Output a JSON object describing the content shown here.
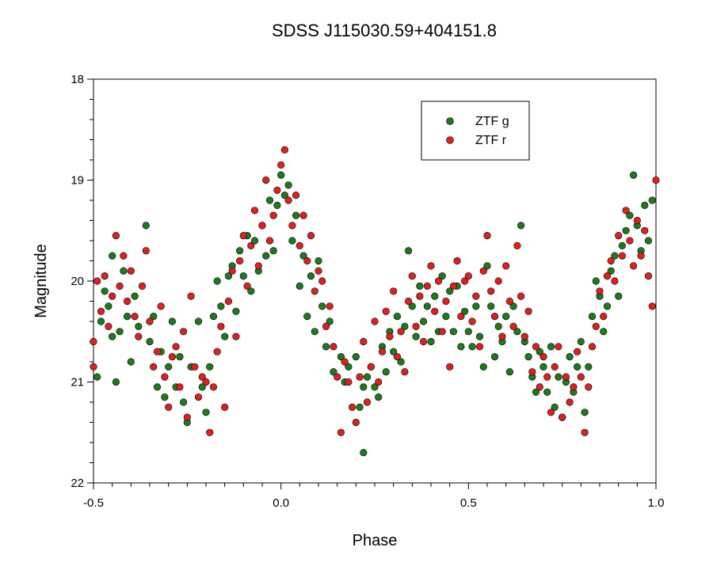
{
  "chart_data": {
    "type": "scatter",
    "title": "SDSS J115030.59+404151.8",
    "xlabel": "Phase",
    "ylabel": "Magnitude",
    "xlim": [
      -0.5,
      1.0
    ],
    "ylim": [
      22,
      18
    ],
    "y_inverted": true,
    "x_ticks": [
      -0.5,
      0.0,
      0.5,
      1.0
    ],
    "x_tick_labels": [
      "-0.5",
      "0.0",
      "0.5",
      "1.0"
    ],
    "y_ticks": [
      18,
      19,
      20,
      21,
      22
    ],
    "y_tick_labels": [
      "18",
      "19",
      "20",
      "21",
      "22"
    ],
    "grid": false,
    "legend_position": "top-right",
    "series": [
      {
        "name": "ZTF g",
        "color": "#1e7a1e",
        "points": [
          [
            -0.49,
            20.95
          ],
          [
            -0.48,
            20.4
          ],
          [
            -0.47,
            20.1
          ],
          [
            -0.46,
            20.25
          ],
          [
            -0.45,
            20.55
          ],
          [
            -0.45,
            19.75
          ],
          [
            -0.44,
            21.0
          ],
          [
            -0.43,
            20.5
          ],
          [
            -0.42,
            19.9
          ],
          [
            -0.41,
            20.35
          ],
          [
            -0.4,
            20.8
          ],
          [
            -0.39,
            20.15
          ],
          [
            -0.38,
            20.45
          ],
          [
            -0.36,
            19.45
          ],
          [
            -0.35,
            20.6
          ],
          [
            -0.34,
            20.35
          ],
          [
            -0.33,
            21.05
          ],
          [
            -0.32,
            20.7
          ],
          [
            -0.31,
            21.15
          ],
          [
            -0.3,
            20.85
          ],
          [
            -0.29,
            20.4
          ],
          [
            -0.28,
            21.05
          ],
          [
            -0.27,
            20.75
          ],
          [
            -0.26,
            21.2
          ],
          [
            -0.25,
            21.4
          ],
          [
            -0.24,
            20.85
          ],
          [
            -0.22,
            20.4
          ],
          [
            -0.21,
            21.05
          ],
          [
            -0.2,
            21.3
          ],
          [
            -0.19,
            20.85
          ],
          [
            -0.18,
            20.35
          ],
          [
            -0.17,
            20.0
          ],
          [
            -0.16,
            20.25
          ],
          [
            -0.15,
            20.55
          ],
          [
            -0.14,
            19.95
          ],
          [
            -0.13,
            19.85
          ],
          [
            -0.12,
            20.3
          ],
          [
            -0.11,
            19.7
          ],
          [
            -0.1,
            19.95
          ],
          [
            -0.09,
            19.55
          ],
          [
            -0.08,
            20.1
          ],
          [
            -0.07,
            19.6
          ],
          [
            -0.06,
            19.9
          ],
          [
            -0.05,
            19.45
          ],
          [
            -0.04,
            19.75
          ],
          [
            -0.03,
            19.2
          ],
          [
            -0.02,
            19.7
          ],
          [
            -0.01,
            19.25
          ],
          [
            0.0,
            18.95
          ],
          [
            0.01,
            19.15
          ],
          [
            0.02,
            19.05
          ],
          [
            0.03,
            19.6
          ],
          [
            0.04,
            19.35
          ],
          [
            0.05,
            20.05
          ],
          [
            0.06,
            19.75
          ],
          [
            0.07,
            20.35
          ],
          [
            0.08,
            19.95
          ],
          [
            0.09,
            20.5
          ],
          [
            0.1,
            19.8
          ],
          [
            0.11,
            20.25
          ],
          [
            0.12,
            20.65
          ],
          [
            0.13,
            20.4
          ],
          [
            0.14,
            20.9
          ],
          [
            0.16,
            20.75
          ],
          [
            0.17,
            21.0
          ],
          [
            0.18,
            20.85
          ],
          [
            0.2,
            20.75
          ],
          [
            0.21,
            21.25
          ],
          [
            0.22,
            21.05
          ],
          [
            0.22,
            21.7
          ],
          [
            0.23,
            20.95
          ],
          [
            0.24,
            20.85
          ],
          [
            0.25,
            21.05
          ],
          [
            0.26,
            21.15
          ],
          [
            0.27,
            20.65
          ],
          [
            0.28,
            20.9
          ],
          [
            0.29,
            20.5
          ],
          [
            0.3,
            20.7
          ],
          [
            0.31,
            20.35
          ],
          [
            0.32,
            20.8
          ],
          [
            0.33,
            20.45
          ],
          [
            0.34,
            19.7
          ],
          [
            0.35,
            20.25
          ],
          [
            0.36,
            20.55
          ],
          [
            0.37,
            20.05
          ],
          [
            0.38,
            20.4
          ],
          [
            0.39,
            20.25
          ],
          [
            0.4,
            20.6
          ],
          [
            0.41,
            20.15
          ],
          [
            0.42,
            20.5
          ],
          [
            0.43,
            19.95
          ],
          [
            0.44,
            20.35
          ],
          [
            0.45,
            20.1
          ],
          [
            0.46,
            20.5
          ],
          [
            0.47,
            20.05
          ],
          [
            0.48,
            20.65
          ],
          [
            0.49,
            20.3
          ],
          [
            0.5,
            20.5
          ],
          [
            0.51,
            20.65
          ],
          [
            0.52,
            20.25
          ],
          [
            0.53,
            20.55
          ],
          [
            0.54,
            20.85
          ],
          [
            0.55,
            19.85
          ],
          [
            0.56,
            20.25
          ],
          [
            0.57,
            20.75
          ],
          [
            0.58,
            20.45
          ],
          [
            0.59,
            20.6
          ],
          [
            0.6,
            20.35
          ],
          [
            0.61,
            20.9
          ],
          [
            0.62,
            20.25
          ],
          [
            0.63,
            20.5
          ],
          [
            0.64,
            19.45
          ],
          [
            0.65,
            20.6
          ],
          [
            0.66,
            20.75
          ],
          [
            0.67,
            20.95
          ],
          [
            0.68,
            21.1
          ],
          [
            0.69,
            20.7
          ],
          [
            0.7,
            20.85
          ],
          [
            0.71,
            21.1
          ],
          [
            0.72,
            20.65
          ],
          [
            0.73,
            21.25
          ],
          [
            0.74,
            20.95
          ],
          [
            0.75,
            21.35
          ],
          [
            0.76,
            21.0
          ],
          [
            0.77,
            20.75
          ],
          [
            0.78,
            21.1
          ],
          [
            0.79,
            20.85
          ],
          [
            0.8,
            20.6
          ],
          [
            0.81,
            21.3
          ],
          [
            0.82,
            20.85
          ],
          [
            0.83,
            20.35
          ],
          [
            0.84,
            20.0
          ],
          [
            0.85,
            20.15
          ],
          [
            0.86,
            20.5
          ],
          [
            0.87,
            20.25
          ],
          [
            0.88,
            19.9
          ],
          [
            0.89,
            19.75
          ],
          [
            0.9,
            20.15
          ],
          [
            0.91,
            19.65
          ],
          [
            0.92,
            19.5
          ],
          [
            0.93,
            19.35
          ],
          [
            0.94,
            18.95
          ],
          [
            0.95,
            19.45
          ],
          [
            0.96,
            19.7
          ],
          [
            0.97,
            19.25
          ],
          [
            0.98,
            19.6
          ],
          [
            0.99,
            19.2
          ]
        ]
      },
      {
        "name": "ZTF r",
        "color": "#e02020",
        "points": [
          [
            -0.5,
            20.6
          ],
          [
            -0.5,
            20.85
          ],
          [
            -0.49,
            20.0
          ],
          [
            -0.48,
            20.3
          ],
          [
            -0.47,
            19.95
          ],
          [
            -0.46,
            20.45
          ],
          [
            -0.45,
            20.15
          ],
          [
            -0.44,
            19.55
          ],
          [
            -0.43,
            20.05
          ],
          [
            -0.42,
            19.75
          ],
          [
            -0.41,
            20.2
          ],
          [
            -0.4,
            19.9
          ],
          [
            -0.39,
            20.35
          ],
          [
            -0.38,
            20.55
          ],
          [
            -0.37,
            20.05
          ],
          [
            -0.36,
            19.7
          ],
          [
            -0.35,
            20.4
          ],
          [
            -0.34,
            20.85
          ],
          [
            -0.33,
            20.7
          ],
          [
            -0.32,
            20.25
          ],
          [
            -0.31,
            20.95
          ],
          [
            -0.3,
            21.25
          ],
          [
            -0.29,
            20.75
          ],
          [
            -0.28,
            20.65
          ],
          [
            -0.27,
            21.05
          ],
          [
            -0.26,
            20.5
          ],
          [
            -0.25,
            21.35
          ],
          [
            -0.24,
            20.15
          ],
          [
            -0.23,
            20.85
          ],
          [
            -0.22,
            21.15
          ],
          [
            -0.21,
            20.95
          ],
          [
            -0.2,
            21.0
          ],
          [
            -0.19,
            21.5
          ],
          [
            -0.18,
            21.05
          ],
          [
            -0.17,
            20.7
          ],
          [
            -0.16,
            20.45
          ],
          [
            -0.15,
            21.25
          ],
          [
            -0.14,
            20.2
          ],
          [
            -0.13,
            19.9
          ],
          [
            -0.12,
            20.55
          ],
          [
            -0.11,
            19.8
          ],
          [
            -0.1,
            19.55
          ],
          [
            -0.09,
            20.05
          ],
          [
            -0.08,
            19.65
          ],
          [
            -0.07,
            19.3
          ],
          [
            -0.06,
            19.85
          ],
          [
            -0.05,
            19.45
          ],
          [
            -0.04,
            19.0
          ],
          [
            -0.03,
            19.6
          ],
          [
            -0.02,
            19.35
          ],
          [
            -0.01,
            19.1
          ],
          [
            0.0,
            18.85
          ],
          [
            0.01,
            18.7
          ],
          [
            0.02,
            19.2
          ],
          [
            0.03,
            19.45
          ],
          [
            0.04,
            19.15
          ],
          [
            0.05,
            19.65
          ],
          [
            0.06,
            19.35
          ],
          [
            0.07,
            19.8
          ],
          [
            0.08,
            19.55
          ],
          [
            0.09,
            20.1
          ],
          [
            0.1,
            19.9
          ],
          [
            0.11,
            20.0
          ],
          [
            0.12,
            20.45
          ],
          [
            0.13,
            20.25
          ],
          [
            0.14,
            20.65
          ],
          [
            0.15,
            20.95
          ],
          [
            0.16,
            21.5
          ],
          [
            0.17,
            20.8
          ],
          [
            0.18,
            21.0
          ],
          [
            0.19,
            21.25
          ],
          [
            0.2,
            21.4
          ],
          [
            0.21,
            20.95
          ],
          [
            0.22,
            20.6
          ],
          [
            0.23,
            21.2
          ],
          [
            0.24,
            20.85
          ],
          [
            0.25,
            20.4
          ],
          [
            0.26,
            21.0
          ],
          [
            0.27,
            20.7
          ],
          [
            0.28,
            20.3
          ],
          [
            0.29,
            20.55
          ],
          [
            0.3,
            20.1
          ],
          [
            0.31,
            20.75
          ],
          [
            0.32,
            20.5
          ],
          [
            0.33,
            20.9
          ],
          [
            0.34,
            20.2
          ],
          [
            0.35,
            19.95
          ],
          [
            0.36,
            20.45
          ],
          [
            0.37,
            20.15
          ],
          [
            0.38,
            20.6
          ],
          [
            0.39,
            20.05
          ],
          [
            0.4,
            19.85
          ],
          [
            0.41,
            20.3
          ],
          [
            0.42,
            20.0
          ],
          [
            0.43,
            20.5
          ],
          [
            0.44,
            20.2
          ],
          [
            0.45,
            20.85
          ],
          [
            0.46,
            20.05
          ],
          [
            0.47,
            19.8
          ],
          [
            0.48,
            20.35
          ],
          [
            0.49,
            20.0
          ],
          [
            0.5,
            19.95
          ],
          [
            0.51,
            20.4
          ],
          [
            0.52,
            20.15
          ],
          [
            0.53,
            20.65
          ],
          [
            0.54,
            19.9
          ],
          [
            0.55,
            19.55
          ],
          [
            0.56,
            20.1
          ],
          [
            0.57,
            20.35
          ],
          [
            0.58,
            20.0
          ],
          [
            0.59,
            20.55
          ],
          [
            0.6,
            19.85
          ],
          [
            0.61,
            20.2
          ],
          [
            0.62,
            20.45
          ],
          [
            0.63,
            19.65
          ],
          [
            0.64,
            20.15
          ],
          [
            0.65,
            20.55
          ],
          [
            0.66,
            20.3
          ],
          [
            0.67,
            20.9
          ],
          [
            0.68,
            20.65
          ],
          [
            0.69,
            21.05
          ],
          [
            0.7,
            20.75
          ],
          [
            0.71,
            20.95
          ],
          [
            0.72,
            21.3
          ],
          [
            0.73,
            20.85
          ],
          [
            0.74,
            20.65
          ],
          [
            0.75,
            21.35
          ],
          [
            0.76,
            20.95
          ],
          [
            0.77,
            21.2
          ],
          [
            0.78,
            21.05
          ],
          [
            0.79,
            20.7
          ],
          [
            0.8,
            20.95
          ],
          [
            0.81,
            21.5
          ],
          [
            0.82,
            21.05
          ],
          [
            0.83,
            20.65
          ],
          [
            0.84,
            20.45
          ],
          [
            0.85,
            20.1
          ],
          [
            0.86,
            20.35
          ],
          [
            0.87,
            19.95
          ],
          [
            0.88,
            19.8
          ],
          [
            0.89,
            20.0
          ],
          [
            0.9,
            19.55
          ],
          [
            0.91,
            19.75
          ],
          [
            0.92,
            19.3
          ],
          [
            0.93,
            19.6
          ],
          [
            0.94,
            19.85
          ],
          [
            0.95,
            19.4
          ],
          [
            0.96,
            19.75
          ],
          [
            0.97,
            19.5
          ],
          [
            0.98,
            19.95
          ],
          [
            0.99,
            20.25
          ],
          [
            1.0,
            19.0
          ]
        ]
      }
    ]
  }
}
